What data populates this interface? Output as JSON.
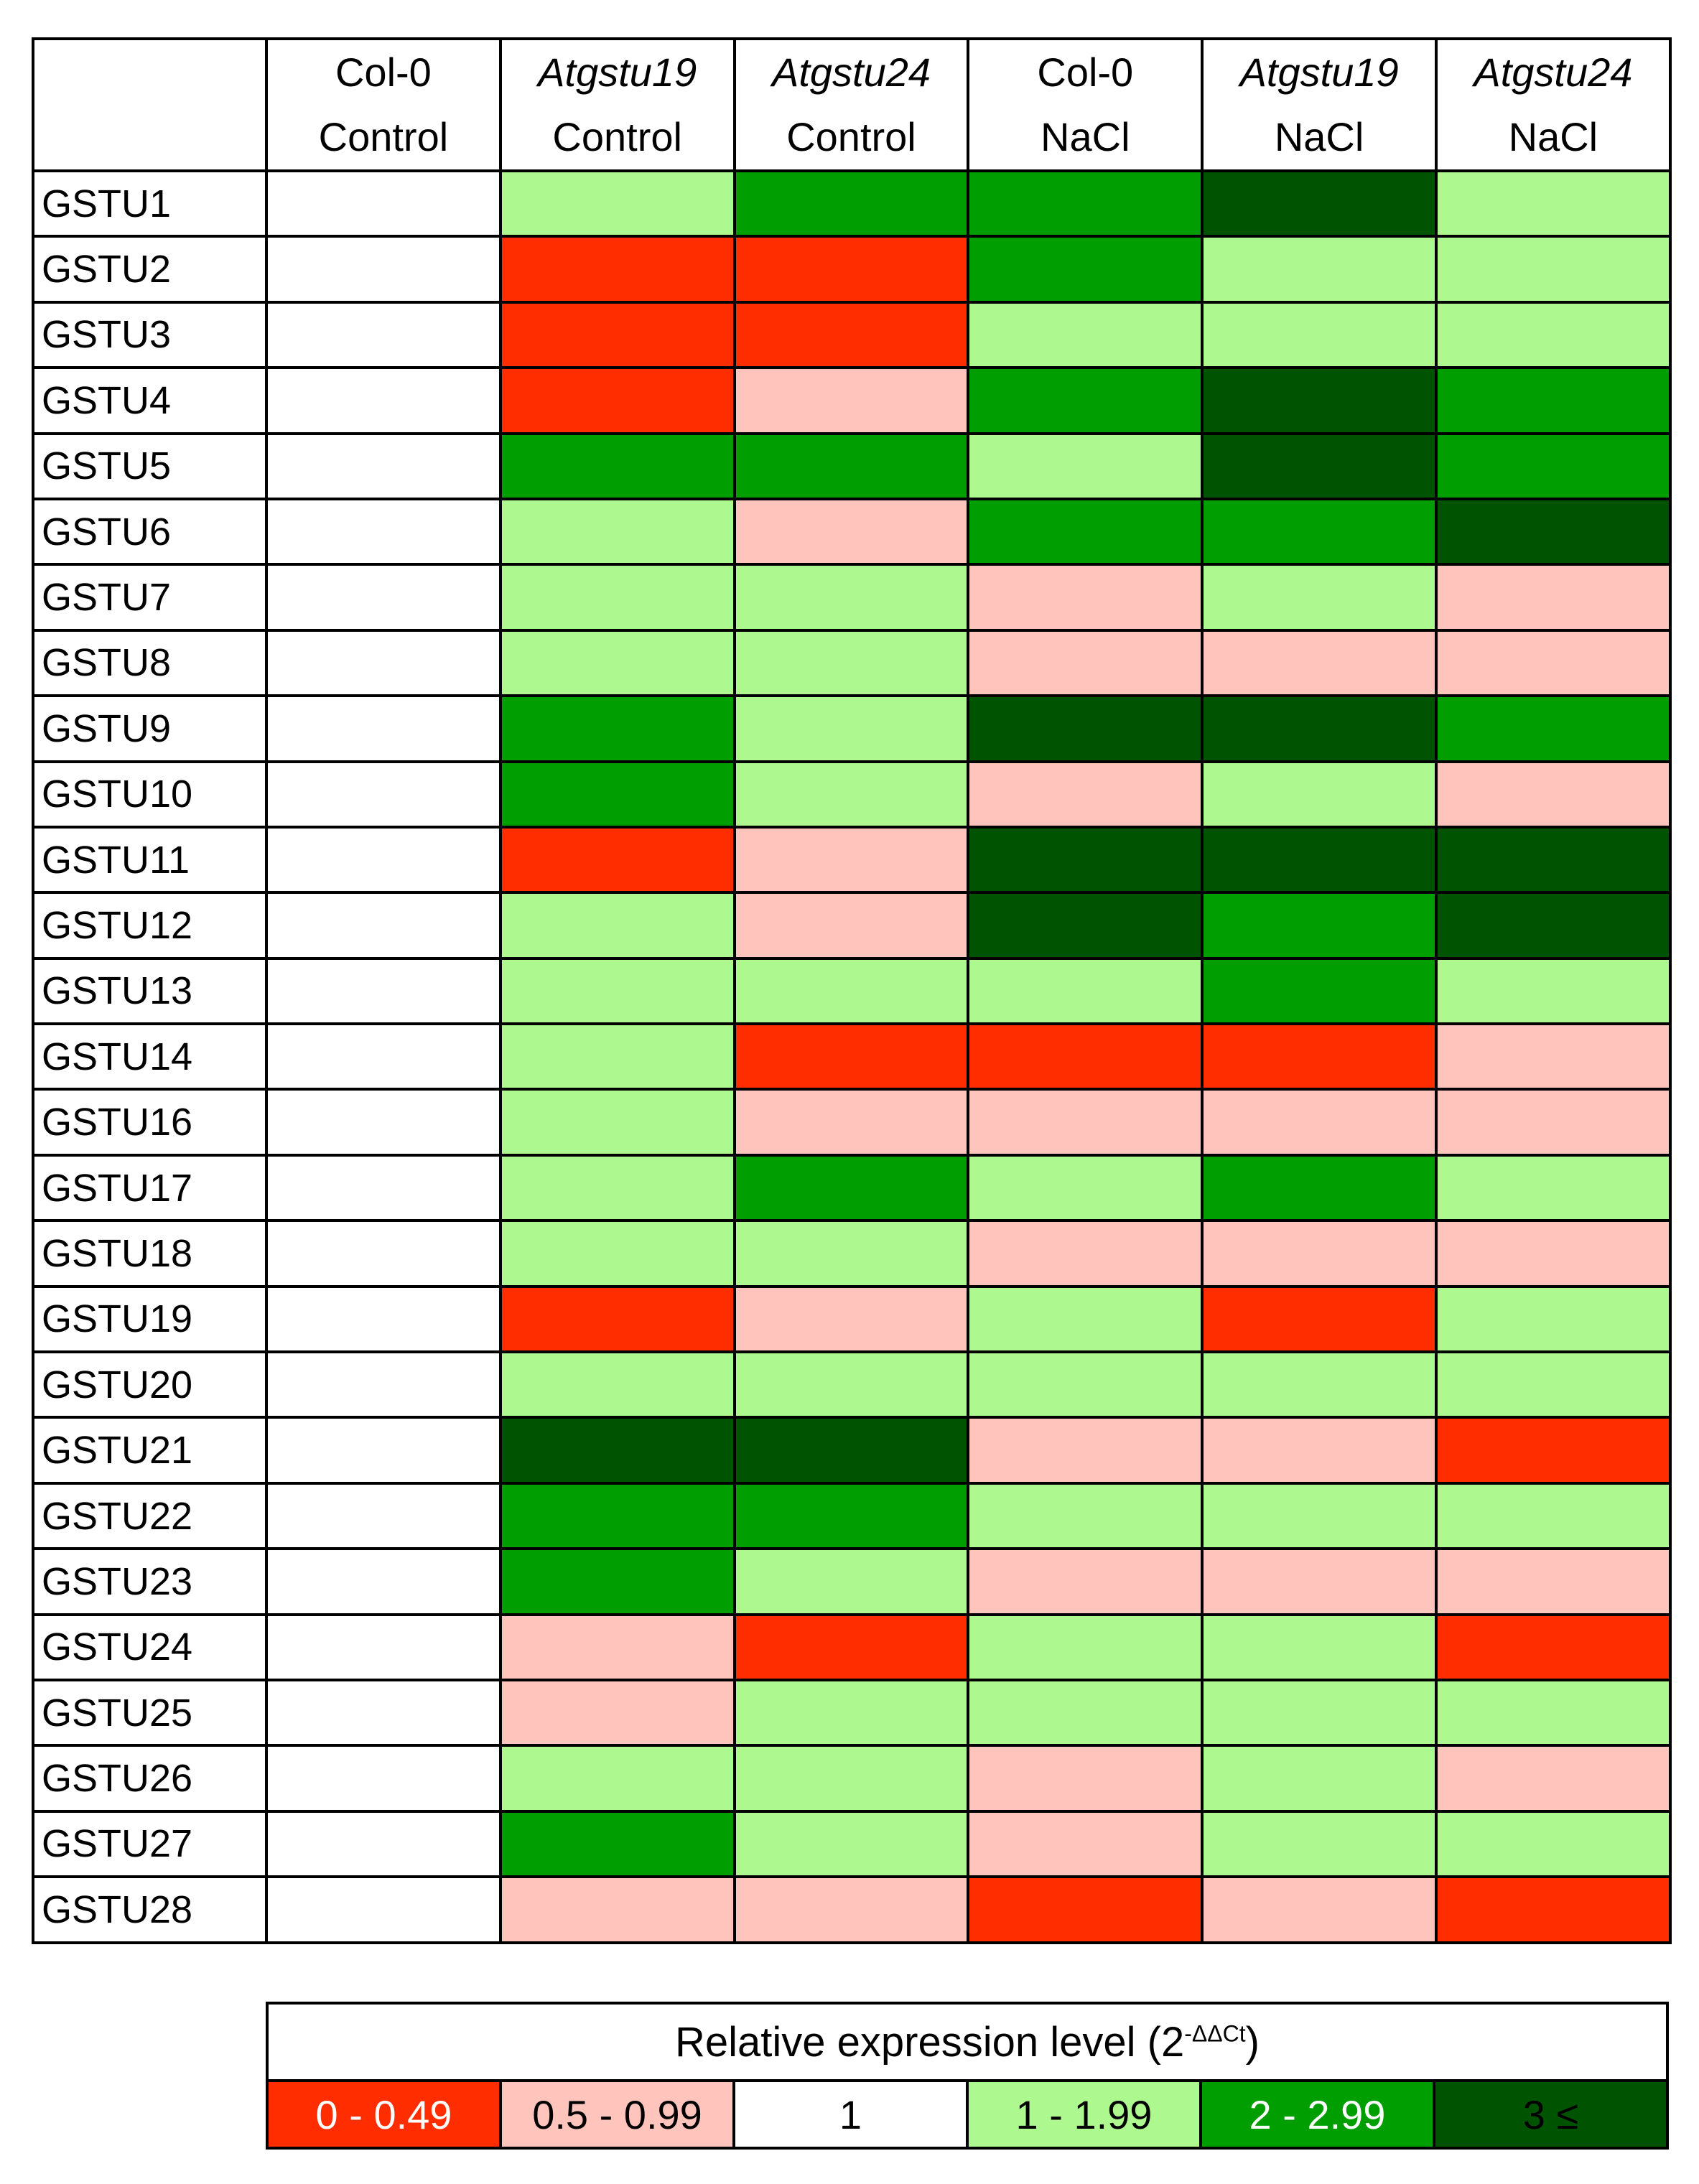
{
  "chart_data": {
    "type": "heatmap",
    "columns": [
      {
        "genotype": "Col-0",
        "italic": false,
        "treatment": "Control"
      },
      {
        "genotype": "Atgstu19",
        "italic": true,
        "treatment": "Control"
      },
      {
        "genotype": "Atgstu24",
        "italic": true,
        "treatment": "Control"
      },
      {
        "genotype": "Col-0",
        "italic": false,
        "treatment": "NaCl"
      },
      {
        "genotype": "Atgstu19",
        "italic": true,
        "treatment": "NaCl"
      },
      {
        "genotype": "Atgstu24",
        "italic": true,
        "treatment": "NaCl"
      }
    ],
    "rows": [
      "GSTU1",
      "GSTU2",
      "GSTU3",
      "GSTU4",
      "GSTU5",
      "GSTU6",
      "GSTU7",
      "GSTU8",
      "GSTU9",
      "GSTU10",
      "GSTU11",
      "GSTU12",
      "GSTU13",
      "GSTU14",
      "GSTU16",
      "GSTU17",
      "GSTU18",
      "GSTU19",
      "GSTU20",
      "GSTU21",
      "GSTU22",
      "GSTU23",
      "GSTU24",
      "GSTU25",
      "GSTU26",
      "GSTU27",
      "GSTU28"
    ],
    "levels": [
      {
        "key": "0",
        "label": "0 - 0.49",
        "color": "#ff2d00",
        "text_color": "#ffffff"
      },
      {
        "key": "1",
        "label": "0.5 - 0.99",
        "color": "#ffc4bc",
        "text_color": "#000000"
      },
      {
        "key": "2",
        "label": "1",
        "color": "#ffffff",
        "text_color": "#000000"
      },
      {
        "key": "3",
        "label": "1 - 1.99",
        "color": "#adf98f",
        "text_color": "#000000"
      },
      {
        "key": "4",
        "label": "2 - 2.99",
        "color": "#009e00",
        "text_color": "#ffffff"
      },
      {
        "key": "5",
        "label": "3 ≤",
        "color": "#005300",
        "text_color": "#000000"
      }
    ],
    "values": [
      [
        2,
        3,
        4,
        4,
        5,
        3
      ],
      [
        2,
        0,
        0,
        4,
        3,
        3
      ],
      [
        2,
        0,
        0,
        3,
        3,
        3
      ],
      [
        2,
        0,
        1,
        4,
        5,
        4
      ],
      [
        2,
        4,
        4,
        3,
        5,
        4
      ],
      [
        2,
        3,
        1,
        4,
        4,
        5
      ],
      [
        2,
        3,
        3,
        1,
        3,
        1
      ],
      [
        2,
        3,
        3,
        1,
        1,
        1
      ],
      [
        2,
        4,
        3,
        5,
        5,
        4
      ],
      [
        2,
        4,
        3,
        1,
        3,
        1
      ],
      [
        2,
        0,
        1,
        5,
        5,
        5
      ],
      [
        2,
        3,
        1,
        5,
        4,
        5
      ],
      [
        2,
        3,
        3,
        3,
        4,
        3
      ],
      [
        2,
        3,
        0,
        0,
        0,
        1
      ],
      [
        2,
        3,
        1,
        1,
        1,
        1
      ],
      [
        2,
        3,
        4,
        3,
        4,
        3
      ],
      [
        2,
        3,
        3,
        1,
        1,
        1
      ],
      [
        2,
        0,
        1,
        3,
        0,
        3
      ],
      [
        2,
        3,
        3,
        3,
        3,
        3
      ],
      [
        2,
        5,
        5,
        1,
        1,
        0
      ],
      [
        2,
        4,
        4,
        3,
        3,
        3
      ],
      [
        2,
        4,
        3,
        1,
        1,
        1
      ],
      [
        2,
        1,
        0,
        3,
        3,
        0
      ],
      [
        2,
        1,
        3,
        3,
        3,
        3
      ],
      [
        2,
        3,
        3,
        1,
        3,
        1
      ],
      [
        2,
        4,
        3,
        1,
        3,
        3
      ],
      [
        2,
        1,
        1,
        0,
        1,
        0
      ]
    ],
    "legend_title": "Relative expression level (2",
    "legend_title_superscript": "-ΔΔCt",
    "legend_title_suffix": ")"
  }
}
